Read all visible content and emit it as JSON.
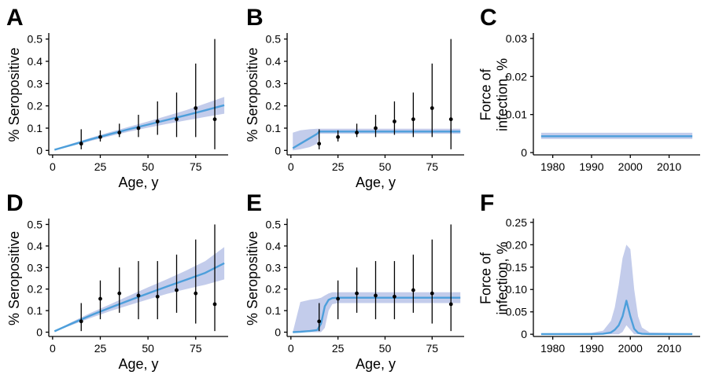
{
  "chart_data": [
    {
      "panel": "A",
      "type": "line",
      "xlabel": "Age, y",
      "ylabel": "% Seropositive",
      "xlim": [
        -2,
        92
      ],
      "ylim": [
        -0.02,
        0.52
      ],
      "xticks": [
        0,
        25,
        50,
        75
      ],
      "yticks": [
        0,
        0.1,
        0.2,
        0.3,
        0.4,
        0.5
      ],
      "yticklabels": [
        "0",
        "0.1",
        "0.2",
        "0.3",
        "0.4",
        "0.5"
      ],
      "fit": {
        "x": [
          1,
          10,
          20,
          30,
          40,
          50,
          60,
          70,
          80,
          90
        ],
        "y": [
          0.003,
          0.025,
          0.05,
          0.073,
          0.095,
          0.116,
          0.137,
          0.158,
          0.18,
          0.203
        ]
      },
      "band": {
        "x": [
          1,
          10,
          20,
          30,
          40,
          50,
          60,
          70,
          80,
          90
        ],
        "lower": [
          0.002,
          0.02,
          0.043,
          0.064,
          0.084,
          0.102,
          0.119,
          0.135,
          0.15,
          0.165
        ],
        "upper": [
          0.004,
          0.03,
          0.057,
          0.082,
          0.106,
          0.13,
          0.155,
          0.181,
          0.21,
          0.24
        ]
      },
      "points": [
        {
          "x": 15,
          "y": 0.03,
          "lo": 0.005,
          "hi": 0.095
        },
        {
          "x": 25,
          "y": 0.06,
          "lo": 0.04,
          "hi": 0.09
        },
        {
          "x": 35,
          "y": 0.08,
          "lo": 0.06,
          "hi": 0.12
        },
        {
          "x": 45,
          "y": 0.1,
          "lo": 0.06,
          "hi": 0.16
        },
        {
          "x": 55,
          "y": 0.13,
          "lo": 0.07,
          "hi": 0.22
        },
        {
          "x": 65,
          "y": 0.14,
          "lo": 0.06,
          "hi": 0.26
        },
        {
          "x": 75,
          "y": 0.19,
          "lo": 0.06,
          "hi": 0.39
        },
        {
          "x": 85,
          "y": 0.14,
          "lo": 0.005,
          "hi": 0.5
        }
      ]
    },
    {
      "panel": "B",
      "type": "line",
      "xlabel": "Age, y",
      "ylabel": "% Seropositive",
      "xlim": [
        -2,
        92
      ],
      "ylim": [
        -0.02,
        0.52
      ],
      "xticks": [
        0,
        25,
        50,
        75
      ],
      "yticks": [
        0,
        0.1,
        0.2,
        0.3,
        0.4,
        0.5
      ],
      "yticklabels": [
        "0",
        "0.1",
        "0.2",
        "0.3",
        "0.4",
        "0.5"
      ],
      "fit": {
        "x": [
          1,
          5,
          10,
          14,
          15,
          20,
          30,
          40,
          50,
          60,
          70,
          80,
          90
        ],
        "y": [
          0.01,
          0.03,
          0.055,
          0.075,
          0.085,
          0.085,
          0.085,
          0.085,
          0.085,
          0.085,
          0.085,
          0.085,
          0.085
        ]
      },
      "band": {
        "x": [
          1,
          5,
          10,
          14,
          15,
          20,
          30,
          40,
          50,
          60,
          70,
          80,
          90
        ],
        "lower": [
          0.0,
          0.005,
          0.015,
          0.03,
          0.075,
          0.075,
          0.075,
          0.075,
          0.075,
          0.075,
          0.075,
          0.075,
          0.075
        ],
        "upper": [
          0.08,
          0.09,
          0.095,
          0.097,
          0.097,
          0.097,
          0.097,
          0.097,
          0.097,
          0.097,
          0.097,
          0.097,
          0.097
        ]
      },
      "points": [
        {
          "x": 15,
          "y": 0.03,
          "lo": 0.005,
          "hi": 0.095
        },
        {
          "x": 25,
          "y": 0.06,
          "lo": 0.04,
          "hi": 0.09
        },
        {
          "x": 35,
          "y": 0.08,
          "lo": 0.06,
          "hi": 0.12
        },
        {
          "x": 45,
          "y": 0.1,
          "lo": 0.06,
          "hi": 0.16
        },
        {
          "x": 55,
          "y": 0.13,
          "lo": 0.07,
          "hi": 0.22
        },
        {
          "x": 65,
          "y": 0.14,
          "lo": 0.06,
          "hi": 0.26
        },
        {
          "x": 75,
          "y": 0.19,
          "lo": 0.06,
          "hi": 0.39
        },
        {
          "x": 85,
          "y": 0.14,
          "lo": 0.005,
          "hi": 0.5
        }
      ]
    },
    {
      "panel": "C",
      "type": "line",
      "xlabel": "",
      "ylabel": "Force of infection, %",
      "xlim": [
        1975,
        2018
      ],
      "ylim": [
        -0.0006,
        0.031
      ],
      "xticks": [
        1980,
        1990,
        2000,
        2010
      ],
      "yticks": [
        0,
        0.01,
        0.02,
        0.03
      ],
      "yticklabels": [
        "0",
        "0.01",
        "0.02",
        "0.03"
      ],
      "fit": {
        "x": [
          1977,
          2016
        ],
        "y": [
          0.0043,
          0.0043
        ]
      },
      "band": {
        "x": [
          1977,
          2016
        ],
        "lower": [
          0.0036,
          0.0036
        ],
        "upper": [
          0.0052,
          0.0052
        ]
      },
      "points": []
    },
    {
      "panel": "D",
      "type": "line",
      "xlabel": "Age, y",
      "ylabel": "% Seropositive",
      "xlim": [
        -2,
        92
      ],
      "ylim": [
        -0.02,
        0.52
      ],
      "xticks": [
        0,
        25,
        50,
        75
      ],
      "yticks": [
        0,
        0.1,
        0.2,
        0.3,
        0.4,
        0.5
      ],
      "yticklabels": [
        "0",
        "0.1",
        "0.2",
        "0.3",
        "0.4",
        "0.5"
      ],
      "fit": {
        "x": [
          1,
          10,
          20,
          30,
          40,
          50,
          60,
          70,
          80,
          90
        ],
        "y": [
          0.004,
          0.04,
          0.078,
          0.113,
          0.147,
          0.18,
          0.212,
          0.243,
          0.275,
          0.32
        ]
      },
      "band": {
        "x": [
          1,
          10,
          20,
          30,
          40,
          50,
          60,
          70,
          80,
          90
        ],
        "lower": [
          0.003,
          0.033,
          0.066,
          0.097,
          0.125,
          0.152,
          0.178,
          0.2,
          0.22,
          0.245
        ]
      },
      "points": [
        {
          "x": 15,
          "y": 0.05,
          "lo": 0.005,
          "hi": 0.135
        },
        {
          "x": 25,
          "y": 0.155,
          "lo": 0.06,
          "hi": 0.24
        },
        {
          "x": 35,
          "y": 0.18,
          "lo": 0.09,
          "hi": 0.3
        },
        {
          "x": 45,
          "y": 0.17,
          "lo": 0.06,
          "hi": 0.33
        },
        {
          "x": 55,
          "y": 0.165,
          "lo": 0.06,
          "hi": 0.33
        },
        {
          "x": 65,
          "y": 0.195,
          "lo": 0.09,
          "hi": 0.36
        },
        {
          "x": 75,
          "y": 0.18,
          "lo": 0.04,
          "hi": 0.43
        },
        {
          "x": 85,
          "y": 0.13,
          "lo": 0.005,
          "hi": 0.5
        }
      ]
    },
    {
      "panel": "E",
      "type": "line",
      "xlabel": "Age, y",
      "ylabel": "% Seropositive",
      "xlim": [
        -2,
        92
      ],
      "ylim": [
        -0.02,
        0.52
      ],
      "xticks": [
        0,
        25,
        50,
        75
      ],
      "yticks": [
        0,
        0.1,
        0.2,
        0.3,
        0.4,
        0.5
      ],
      "yticklabels": [
        "0",
        "0.1",
        "0.2",
        "0.3",
        "0.4",
        "0.5"
      ],
      "fit": {
        "x": [
          1,
          5,
          10,
          14,
          16,
          18,
          20,
          22,
          25,
          30,
          40,
          50,
          60,
          70,
          80,
          90
        ],
        "y": [
          0.0,
          0.002,
          0.005,
          0.01,
          0.04,
          0.12,
          0.15,
          0.158,
          0.16,
          0.16,
          0.16,
          0.16,
          0.16,
          0.16,
          0.16,
          0.16
        ]
      },
      "band": {
        "x": [
          1,
          5,
          10,
          14,
          16,
          18,
          20,
          22,
          25,
          30,
          40,
          50,
          60,
          70,
          80,
          90
        ],
        "lower": [
          0.0,
          0.0,
          0.0,
          0.0,
          0.0,
          0.02,
          0.1,
          0.13,
          0.135,
          0.135,
          0.135,
          0.135,
          0.135,
          0.135,
          0.135,
          0.135
        ],
        "upper": [
          0.0,
          0.14,
          0.15,
          0.155,
          0.16,
          0.17,
          0.18,
          0.185,
          0.185,
          0.185,
          0.185,
          0.185,
          0.185,
          0.185,
          0.185,
          0.185
        ]
      },
      "points": [
        {
          "x": 15,
          "y": 0.05,
          "lo": 0.005,
          "hi": 0.135
        },
        {
          "x": 25,
          "y": 0.155,
          "lo": 0.06,
          "hi": 0.24
        },
        {
          "x": 35,
          "y": 0.18,
          "lo": 0.09,
          "hi": 0.3
        },
        {
          "x": 45,
          "y": 0.17,
          "lo": 0.06,
          "hi": 0.33
        },
        {
          "x": 55,
          "y": 0.165,
          "lo": 0.06,
          "hi": 0.33
        },
        {
          "x": 65,
          "y": 0.195,
          "lo": 0.09,
          "hi": 0.36
        },
        {
          "x": 75,
          "y": 0.18,
          "lo": 0.04,
          "hi": 0.43
        },
        {
          "x": 85,
          "y": 0.13,
          "lo": 0.005,
          "hi": 0.5
        }
      ]
    },
    {
      "panel": "F",
      "type": "line",
      "xlabel": "",
      "ylabel": "Force of infection, %",
      "xlim": [
        1975,
        2018
      ],
      "ylim": [
        -0.005,
        0.255
      ],
      "xticks": [
        1980,
        1990,
        2000,
        2010
      ],
      "yticks": [
        0,
        0.05,
        0.1,
        0.15,
        0.2,
        0.25
      ],
      "yticklabels": [
        "0",
        "0.05",
        "0.10",
        "0.15",
        "0.20",
        "0.25"
      ],
      "fit": {
        "x": [
          1977,
          1990,
          1993,
          1995,
          1996,
          1997,
          1998,
          1999,
          2000,
          2001,
          2002,
          2003,
          2005,
          2016
        ],
        "y": [
          0.0005,
          0.0005,
          0.001,
          0.004,
          0.01,
          0.02,
          0.04,
          0.075,
          0.04,
          0.012,
          0.003,
          0.001,
          0.0005,
          0.0005
        ]
      },
      "band": {
        "x": [
          1977,
          1990,
          1993,
          1995,
          1996,
          1997,
          1998,
          1999,
          2000,
          2001,
          2002,
          2003,
          2005,
          2016
        ],
        "lower": [
          0.0,
          0.0,
          0.0,
          0.0,
          0.0,
          0.0,
          0.005,
          0.02,
          0.01,
          0.0,
          0.0,
          0.0,
          0.0,
          0.0
        ],
        "upper": [
          0.002,
          0.003,
          0.008,
          0.03,
          0.06,
          0.11,
          0.17,
          0.2,
          0.19,
          0.1,
          0.04,
          0.015,
          0.004,
          0.002
        ]
      },
      "points": []
    }
  ],
  "colors": {
    "line": "#4d9fdb",
    "band": "#b9c3e8",
    "points": "#000000"
  }
}
